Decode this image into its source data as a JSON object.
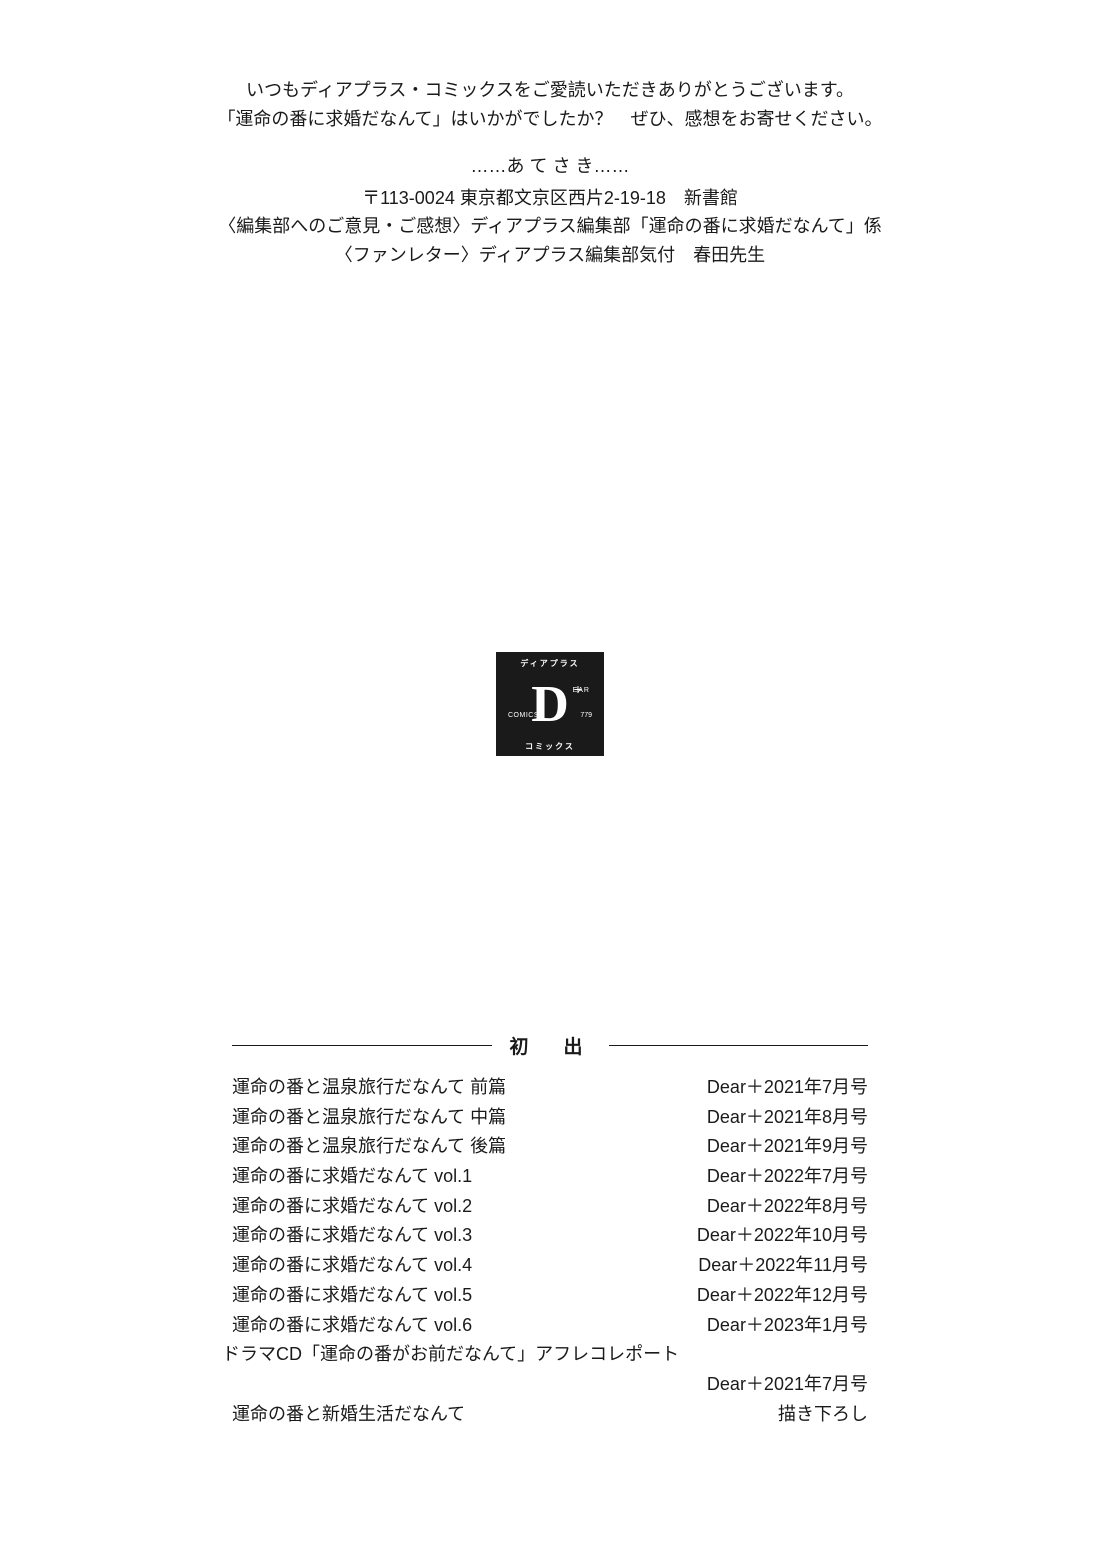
{
  "thanks": {
    "line1": "いつもディアプラス・コミックスをご愛読いただきありがとうございます。",
    "line2": "「運命の番に求婚だなんて」はいかがでしたか？　ぜひ、感想をお寄せください。"
  },
  "atesaki": {
    "header": "……あ て さ き……",
    "line1": "〒113-0024 東京都文京区西片2-19-18　新書館",
    "line2": "〈編集部へのご意見・ご感想〉ディアプラス編集部「運命の番に求婚だなんて」係",
    "line3": "〈ファンレター〉ディアプラス編集部気付　春田先生"
  },
  "logo": {
    "top": "ディアプラス",
    "d": "D",
    "plus": "+",
    "ear": "EAR",
    "comics": "COMICS",
    "num": "779",
    "bottom": "コミックス"
  },
  "hatsude": {
    "title": "初　出",
    "rows": [
      {
        "title": "運命の番と温泉旅行だなんて 前篇",
        "issue": "Dear＋2021年7月号"
      },
      {
        "title": "運命の番と温泉旅行だなんて 中篇",
        "issue": "Dear＋2021年8月号"
      },
      {
        "title": "運命の番と温泉旅行だなんて 後篇",
        "issue": "Dear＋2021年9月号"
      },
      {
        "title": "運命の番に求婚だなんて vol.1",
        "issue": "Dear＋2022年7月号"
      },
      {
        "title": "運命の番に求婚だなんて vol.2",
        "issue": "Dear＋2022年8月号"
      },
      {
        "title": "運命の番に求婚だなんて vol.3",
        "issue": "Dear＋2022年10月号"
      },
      {
        "title": "運命の番に求婚だなんて vol.4",
        "issue": "Dear＋2022年11月号"
      },
      {
        "title": "運命の番に求婚だなんて vol.5",
        "issue": "Dear＋2022年12月号"
      },
      {
        "title": "運命の番に求婚だなんて vol.6",
        "issue": "Dear＋2023年1月号"
      }
    ],
    "drama_line": "ドラマCD「運命の番がお前だなんて」アフレコレポート",
    "drama_issue": "Dear＋2021年7月号",
    "last": {
      "title": "運命の番と新婚生活だなんて",
      "issue": "描き下ろし"
    }
  }
}
